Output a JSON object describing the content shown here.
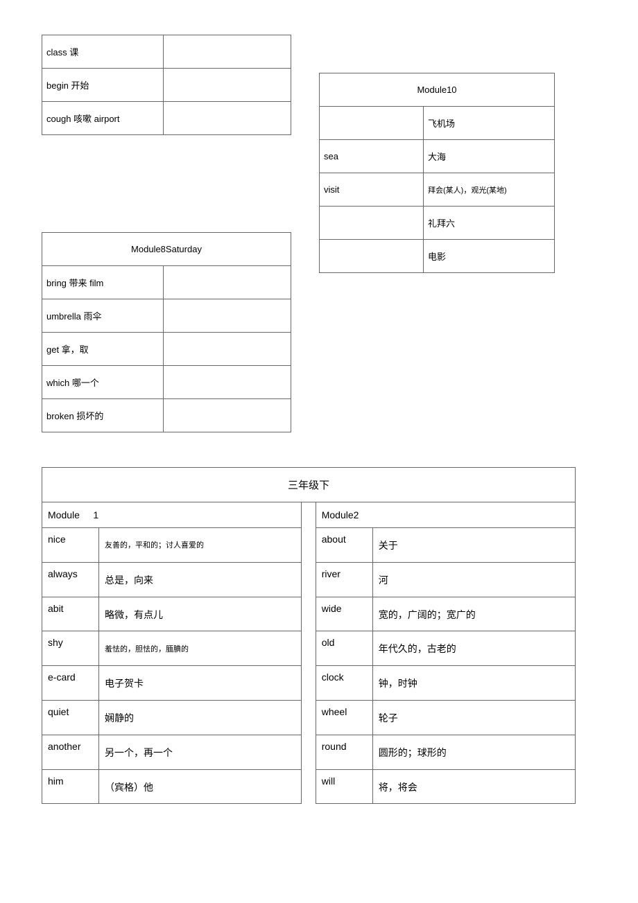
{
  "tableA": {
    "rows": [
      {
        "left": "class 课",
        "right": ""
      },
      {
        "left": "begin 开始",
        "right": ""
      },
      {
        "left": "cough 咳嗽 airport",
        "right": ""
      }
    ]
  },
  "tableB": {
    "header": "Module8Saturday",
    "rows": [
      {
        "left": "bring 带来 film",
        "right": ""
      },
      {
        "left": "umbrella 雨伞",
        "right": ""
      },
      {
        "left": "get 拿，取",
        "right": ""
      },
      {
        "left": "which 哪一个",
        "right": ""
      },
      {
        "left": "broken 损坏的",
        "right": ""
      }
    ]
  },
  "tableC": {
    "header": "Module10",
    "rows": [
      {
        "left": "",
        "right": "飞机场"
      },
      {
        "left": "sea",
        "right": "大海"
      },
      {
        "left": "visit",
        "right": "拜会(某人)，观光(某地)"
      },
      {
        "left": "",
        "right": "礼拜六"
      },
      {
        "left": "",
        "right": "电影"
      }
    ]
  },
  "tableD": {
    "title": "三年级下",
    "module1_label": "Module     1",
    "module2_label": "Module2",
    "left_rows": [
      {
        "word": "nice",
        "def": "友善的，平和的；讨人喜爱的",
        "small": true
      },
      {
        "word": "always",
        "def": "总是，向来",
        "small": false
      },
      {
        "word": "abit",
        "def": "略微，有点儿",
        "small": false
      },
      {
        "word": "shy",
        "def": "羞怯的，胆怯的，腼腆的",
        "small": true
      },
      {
        "word": "e-card",
        "def": "电子贺卡",
        "small": false
      },
      {
        "word": "quiet",
        "def": "娴静的",
        "small": false
      },
      {
        "word": "another",
        "def": "另一个，再一个",
        "small": false
      },
      {
        "word": "him",
        "def": "（宾格）他",
        "small": false
      }
    ],
    "right_rows": [
      {
        "word": "about",
        "def": "关于",
        "small": false
      },
      {
        "word": "river",
        "def": "河",
        "small": false
      },
      {
        "word": "wide",
        "def": "宽的，广阔的；宽广的",
        "small": false
      },
      {
        "word": "old",
        "def": "年代久的，古老的",
        "small": false
      },
      {
        "word": "clock",
        "def": "钟，时钟",
        "small": false
      },
      {
        "word": "wheel",
        "def": "轮子",
        "small": false
      },
      {
        "word": "round",
        "def": "圆形的；球形的",
        "small": false
      },
      {
        "word": "will",
        "def": "将，将会",
        "small": false
      }
    ]
  }
}
